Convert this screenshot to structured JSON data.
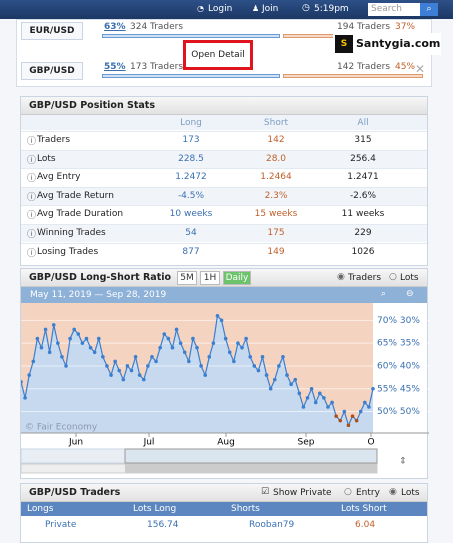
{
  "header": {
    "login": "Login",
    "join": "Join",
    "time": "5:19pm",
    "search_placeholder": "Search"
  },
  "watermark": "Santygia.com",
  "popup": "Open Detail",
  "pairs": [
    {
      "pair": "EUR/USD",
      "long_pct": "63%",
      "long_traders": "324 Traders",
      "short_traders": "194 Traders",
      "short_pct": "37%"
    },
    {
      "pair": "GBP/USD",
      "long_pct": "55%",
      "long_traders": "173 Traders",
      "short_traders": "142 Traders",
      "short_pct": "45%"
    }
  ],
  "stats": {
    "title": "GBP/USD Position Stats",
    "columns": [
      "Long",
      "Short",
      "All"
    ],
    "rows": [
      {
        "label": "Traders",
        "values": [
          "173",
          "142",
          "315"
        ]
      },
      {
        "label": "Lots",
        "values": [
          "228.5",
          "28.0",
          "256.4"
        ]
      },
      {
        "label": "Avg Entry",
        "values": [
          "1.2472",
          "1.2464",
          "1.2471"
        ]
      },
      {
        "label": "Avg Trade Return",
        "values": [
          "-4.5%",
          "2.3%",
          "-2.6%"
        ]
      },
      {
        "label": "Avg Trade Duration",
        "values": [
          "10 weeks",
          "15 weeks",
          "11 weeks"
        ]
      },
      {
        "label": "Winning Trades",
        "values": [
          "54",
          "175",
          "229"
        ]
      },
      {
        "label": "Losing Trades",
        "values": [
          "877",
          "149",
          "1026"
        ]
      }
    ]
  },
  "chart_panel": {
    "title": "GBP/USD Long-Short Ratio",
    "intervals": [
      "5M",
      "1H",
      "Daily"
    ],
    "active_interval": 2,
    "modes": [
      "Traders",
      "Lots"
    ],
    "selected_mode": 0,
    "date_range": "May 11, 2019 — Sep 28, 2019",
    "credit": "© Fair Economy"
  },
  "chart_data": {
    "type": "line",
    "values": [
      56.5,
      53,
      58,
      61,
      66,
      64,
      68,
      63,
      69,
      65,
      62,
      60,
      66,
      68,
      67,
      65,
      66,
      64,
      63,
      66,
      62,
      60,
      58,
      61,
      59,
      57,
      60,
      59,
      62,
      58,
      57,
      60,
      62,
      61,
      64,
      67,
      66,
      64,
      68,
      65,
      63,
      61,
      66,
      64,
      60,
      58,
      62,
      65,
      71,
      70,
      66,
      63,
      61,
      65,
      64,
      66,
      62,
      60,
      59,
      62,
      58,
      55,
      57,
      60,
      62,
      58,
      56,
      57,
      54,
      51,
      53,
      55,
      52,
      54,
      53,
      51,
      52,
      49,
      48,
      50,
      47,
      49,
      48,
      50,
      52,
      51,
      55
    ],
    "ylim": [
      45.3,
      73.8
    ],
    "yticks": [
      {
        "value": 70,
        "label": "70% 30%"
      },
      {
        "value": 65,
        "label": "65% 35%"
      },
      {
        "value": 60,
        "label": "60% 40%"
      },
      {
        "value": 55,
        "label": "55% 45%"
      },
      {
        "value": 50,
        "label": "50% 50%"
      }
    ],
    "xtick_labels": [
      "Jun",
      "Jul",
      "Aug",
      "Sep",
      "O"
    ],
    "long_color": "#3a7fd0",
    "short_color": "#a8501e",
    "fill_long": "#c6d9ef",
    "fill_short": "#f4d3c0"
  },
  "traders": {
    "title": "GBP/USD Traders",
    "show_private": "Show Private",
    "modes": [
      "Entry",
      "Lots"
    ],
    "columns": [
      "Longs",
      "Lots Long",
      "Shorts",
      "Lots Short"
    ],
    "rows": [
      [
        "Private",
        "156.74",
        "Rooban79",
        "6.04"
      ]
    ]
  }
}
